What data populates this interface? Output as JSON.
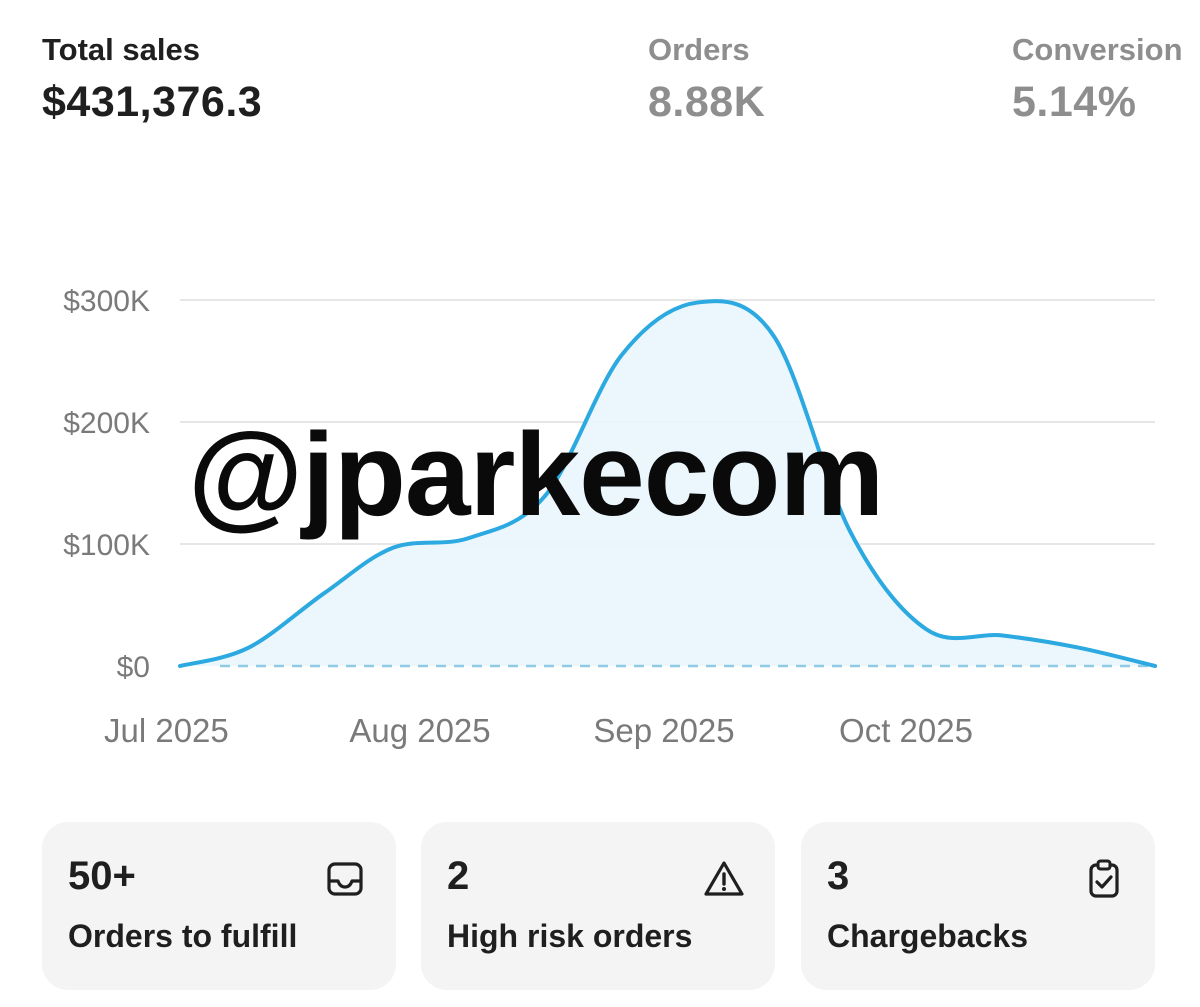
{
  "metrics": {
    "total_sales": {
      "label": "Total sales",
      "value": "$431,376.3"
    },
    "orders": {
      "label": "Orders",
      "value": "8.88K"
    },
    "conversion": {
      "label": "Conversion",
      "value": "5.14%"
    }
  },
  "watermark": "@jparkecom",
  "chart_data": {
    "type": "area",
    "x_ticks": [
      "Jul 2025",
      "Aug 2025",
      "Sep 2025",
      "Oct 2025"
    ],
    "y_ticks": [
      "$300K",
      "$200K",
      "$100K",
      "$0"
    ],
    "ylim": [
      0,
      300000
    ],
    "series": [
      {
        "x": [
          "2025-07-01",
          "2025-07-10",
          "2025-07-20",
          "2025-07-29",
          "2025-08-08",
          "2025-08-18",
          "2025-08-28",
          "2025-09-07",
          "2025-09-17",
          "2025-09-27",
          "2025-10-07",
          "2025-10-17",
          "2025-10-27",
          "2025-11-06"
        ],
        "values": [
          0,
          15000,
          60000,
          97000,
          105000,
          140000,
          255000,
          298000,
          270000,
          110000,
          30000,
          25000,
          15000,
          0
        ]
      }
    ],
    "baseline_dashed": true,
    "grid": true,
    "colors": {
      "line": "#2ba9e0",
      "fill": "#e9f6fc",
      "grid": "#e6e6e6",
      "axis_text": "#7a7a7a"
    }
  },
  "cards": [
    {
      "value": "50+",
      "label": "Orders to fulfill",
      "icon": "inbox-icon"
    },
    {
      "value": "2",
      "label": "High risk orders",
      "icon": "warning-icon"
    },
    {
      "value": "3",
      "label": "Chargebacks",
      "icon": "clipboard-check-icon"
    }
  ]
}
